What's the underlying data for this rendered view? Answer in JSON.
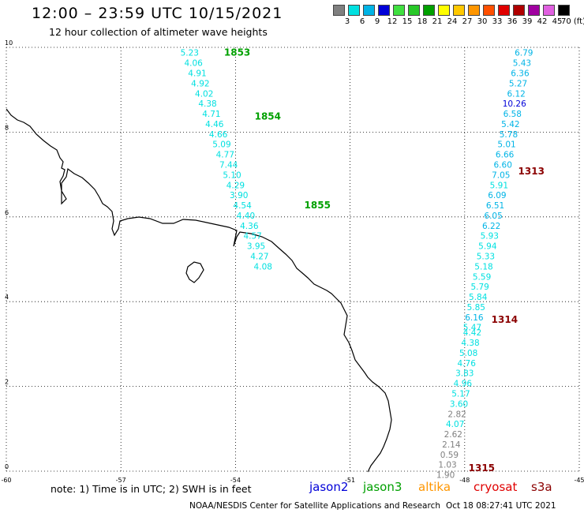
{
  "header": {
    "title": "12:00 – 23:59 UTC 10/15/2021",
    "subtitle": "12 hour collection of altimeter wave heights"
  },
  "color_scale": {
    "labels": [
      "3",
      "6",
      "9",
      "12",
      "15",
      "18",
      "21",
      "24",
      "27",
      "30",
      "33",
      "36",
      "39",
      "42",
      "45",
      "70 (ft)"
    ],
    "colors": [
      "#808080",
      "#00e0e0",
      "#00b4e6",
      "#0000d8",
      "#40e040",
      "#28c828",
      "#00a000",
      "#ffff00",
      "#ffc800",
      "#ff9600",
      "#ff5000",
      "#e00000",
      "#b00000",
      "#a000a0",
      "#e060e0",
      "#000000"
    ]
  },
  "chart_data": {
    "type": "scatter",
    "title": "12:00 – 23:59 UTC 10/15/2021",
    "subtitle": "12 hour collection of altimeter wave heights",
    "xlim": [
      -60,
      -45
    ],
    "ylim": [
      0,
      10
    ],
    "x_ticks": [
      "-60",
      "-57",
      "-54",
      "-51",
      "-48",
      "-45"
    ],
    "y_ticks": [
      "0",
      "2",
      "4",
      "6",
      "8",
      "10"
    ],
    "grid": true,
    "tracks": [
      {
        "label": "1853",
        "x": -54.3,
        "y": 9.8,
        "color": "#00a000"
      },
      {
        "label": "1854",
        "x": -53.5,
        "y": 8.3,
        "color": "#00a000"
      },
      {
        "label": "1855",
        "x": -52.2,
        "y": 6.2,
        "color": "#00a000"
      },
      {
        "label": "1313",
        "x": -46.6,
        "y": 7.0,
        "color": "#8b0000"
      },
      {
        "label": "1314",
        "x": -47.3,
        "y": 3.5,
        "color": "#8b0000"
      },
      {
        "label": "1315",
        "x": -47.9,
        "y": 0.0,
        "color": "#8b0000"
      }
    ],
    "series": [
      {
        "name": "jason3",
        "points": [
          {
            "x": -55.2,
            "y": 9.8,
            "v": "5.23",
            "c": "#00e0e0"
          },
          {
            "x": -55.1,
            "y": 9.56,
            "v": "4.06",
            "c": "#00e0e0"
          },
          {
            "x": -55.0,
            "y": 9.32,
            "v": "4.91",
            "c": "#00e0e0"
          },
          {
            "x": -54.92,
            "y": 9.08,
            "v": "4.92",
            "c": "#00e0e0"
          },
          {
            "x": -54.82,
            "y": 8.84,
            "v": "4.02",
            "c": "#00e0e0"
          },
          {
            "x": -54.73,
            "y": 8.6,
            "v": "4.38",
            "c": "#00e0e0"
          },
          {
            "x": -54.63,
            "y": 8.36,
            "v": "4.71",
            "c": "#00e0e0"
          },
          {
            "x": -54.55,
            "y": 8.12,
            "v": "4.46",
            "c": "#00e0e0"
          },
          {
            "x": -54.45,
            "y": 7.88,
            "v": "4.66",
            "c": "#00e0e0"
          },
          {
            "x": -54.36,
            "y": 7.64,
            "v": "5.09",
            "c": "#00e0e0"
          },
          {
            "x": -54.27,
            "y": 7.4,
            "v": "4.77",
            "c": "#00e0e0"
          },
          {
            "x": -54.18,
            "y": 7.16,
            "v": "7.44",
            "c": "#00e0e0"
          },
          {
            "x": -54.09,
            "y": 6.92,
            "v": "5.10",
            "c": "#00e0e0"
          },
          {
            "x": -54.0,
            "y": 6.68,
            "v": "4.29",
            "c": "#00e0e0"
          },
          {
            "x": -53.91,
            "y": 6.44,
            "v": "3.90",
            "c": "#00e0e0"
          },
          {
            "x": -53.82,
            "y": 6.2,
            "v": "4.54",
            "c": "#00e0e0"
          },
          {
            "x": -53.73,
            "y": 5.96,
            "v": "4.40",
            "c": "#00e0e0"
          },
          {
            "x": -53.64,
            "y": 5.72,
            "v": "4.36",
            "c": "#00e0e0"
          },
          {
            "x": -53.55,
            "y": 5.48,
            "v": "4.57",
            "c": "#00e0e0"
          },
          {
            "x": -53.46,
            "y": 5.24,
            "v": "3.95",
            "c": "#00e0e0"
          },
          {
            "x": -53.37,
            "y": 5.0,
            "v": "4.27",
            "c": "#00e0e0"
          },
          {
            "x": -53.28,
            "y": 4.76,
            "v": "4.08",
            "c": "#00e0e0"
          }
        ]
      },
      {
        "name": "s3a",
        "points": [
          {
            "x": -46.45,
            "y": 9.8,
            "v": "6.79",
            "c": "#00b4e6"
          },
          {
            "x": -46.5,
            "y": 9.56,
            "v": "5.43",
            "c": "#00b4e6"
          },
          {
            "x": -46.55,
            "y": 9.32,
            "v": "6.36",
            "c": "#00b4e6"
          },
          {
            "x": -46.6,
            "y": 9.08,
            "v": "5.27",
            "c": "#00b4e6"
          },
          {
            "x": -46.65,
            "y": 8.84,
            "v": "6.12",
            "c": "#00b4e6"
          },
          {
            "x": -46.7,
            "y": 8.6,
            "v": "10.26",
            "c": "#0000d8"
          },
          {
            "x": -46.75,
            "y": 8.36,
            "v": "6.58",
            "c": "#00b4e6"
          },
          {
            "x": -46.8,
            "y": 8.12,
            "v": "5.42",
            "c": "#00b4e6"
          },
          {
            "x": -46.85,
            "y": 7.88,
            "v": "5.78",
            "c": "#00b4e6"
          },
          {
            "x": -46.9,
            "y": 7.64,
            "v": "5.01",
            "c": "#00b4e6"
          },
          {
            "x": -46.95,
            "y": 7.4,
            "v": "6.66",
            "c": "#00b4e6"
          },
          {
            "x": -47.0,
            "y": 7.16,
            "v": "6.60",
            "c": "#00b4e6"
          },
          {
            "x": -47.05,
            "y": 6.92,
            "v": "7.05",
            "c": "#00b4e6"
          },
          {
            "x": -47.1,
            "y": 6.68,
            "v": "5.91",
            "c": "#00e0e0"
          },
          {
            "x": -47.15,
            "y": 6.44,
            "v": "6.09",
            "c": "#00b4e6"
          },
          {
            "x": -47.2,
            "y": 6.2,
            "v": "6.51",
            "c": "#00b4e6"
          },
          {
            "x": -47.25,
            "y": 5.96,
            "v": "6.05",
            "c": "#00b4e6"
          },
          {
            "x": -47.3,
            "y": 5.72,
            "v": "6.22",
            "c": "#00b4e6"
          },
          {
            "x": -47.35,
            "y": 5.48,
            "v": "5.93",
            "c": "#00e0e0"
          },
          {
            "x": -47.4,
            "y": 5.24,
            "v": "5.94",
            "c": "#00e0e0"
          },
          {
            "x": -47.45,
            "y": 5.0,
            "v": "5.33",
            "c": "#00e0e0"
          },
          {
            "x": -47.5,
            "y": 4.76,
            "v": "5.18",
            "c": "#00e0e0"
          },
          {
            "x": -47.55,
            "y": 4.52,
            "v": "5.59",
            "c": "#00e0e0"
          },
          {
            "x": -47.6,
            "y": 4.28,
            "v": "5.79",
            "c": "#00e0e0"
          },
          {
            "x": -47.65,
            "y": 4.04,
            "v": "5.84",
            "c": "#00e0e0"
          },
          {
            "x": -47.7,
            "y": 3.8,
            "v": "5.85",
            "c": "#00e0e0"
          },
          {
            "x": -47.75,
            "y": 3.56,
            "v": "6.16",
            "c": "#00b4e6"
          },
          {
            "x": -47.8,
            "y": 3.32,
            "v": "5.47",
            "c": "#00e0e0"
          },
          {
            "x": -47.8,
            "y": 3.2,
            "v": "4.42",
            "c": "#00e0e0"
          },
          {
            "x": -47.85,
            "y": 2.96,
            "v": "4.38",
            "c": "#00e0e0"
          },
          {
            "x": -47.9,
            "y": 2.72,
            "v": "5.08",
            "c": "#00e0e0"
          },
          {
            "x": -47.95,
            "y": 2.48,
            "v": "4.76",
            "c": "#00e0e0"
          },
          {
            "x": -48.0,
            "y": 2.24,
            "v": "3.83",
            "c": "#00e0e0"
          },
          {
            "x": -48.05,
            "y": 2.0,
            "v": "4.96",
            "c": "#00e0e0"
          },
          {
            "x": -48.1,
            "y": 1.76,
            "v": "5.17",
            "c": "#00e0e0"
          },
          {
            "x": -48.15,
            "y": 1.52,
            "v": "3.60",
            "c": "#00e0e0"
          },
          {
            "x": -48.2,
            "y": 1.28,
            "v": "2.82",
            "c": "#808080"
          },
          {
            "x": -48.25,
            "y": 1.04,
            "v": "4.07",
            "c": "#00e0e0"
          },
          {
            "x": -48.3,
            "y": 0.8,
            "v": "2.62",
            "c": "#808080"
          },
          {
            "x": -48.35,
            "y": 0.56,
            "v": "2.14",
            "c": "#808080"
          },
          {
            "x": -48.4,
            "y": 0.32,
            "v": "0.59",
            "c": "#808080"
          },
          {
            "x": -48.45,
            "y": 0.08,
            "v": "1.03",
            "c": "#808080"
          },
          {
            "x": -48.5,
            "y": -0.16,
            "v": "1.90",
            "c": "#808080"
          }
        ]
      }
    ]
  },
  "footer": {
    "note": "note: 1) Time is in UTC; 2) SWH is in feet",
    "satellites": [
      {
        "name": "jason2",
        "color": "#0000d8"
      },
      {
        "name": "jason3",
        "color": "#00a000"
      },
      {
        "name": "altika",
        "color": "#ff9600"
      },
      {
        "name": "cryosat",
        "color": "#e00000"
      },
      {
        "name": "s3a",
        "color": "#8b0000"
      }
    ],
    "credit": "NOAA/NESDIS Center for Satellite Applications and Research",
    "timestamp": "Oct 18 08:27:41 UTC 2021"
  }
}
